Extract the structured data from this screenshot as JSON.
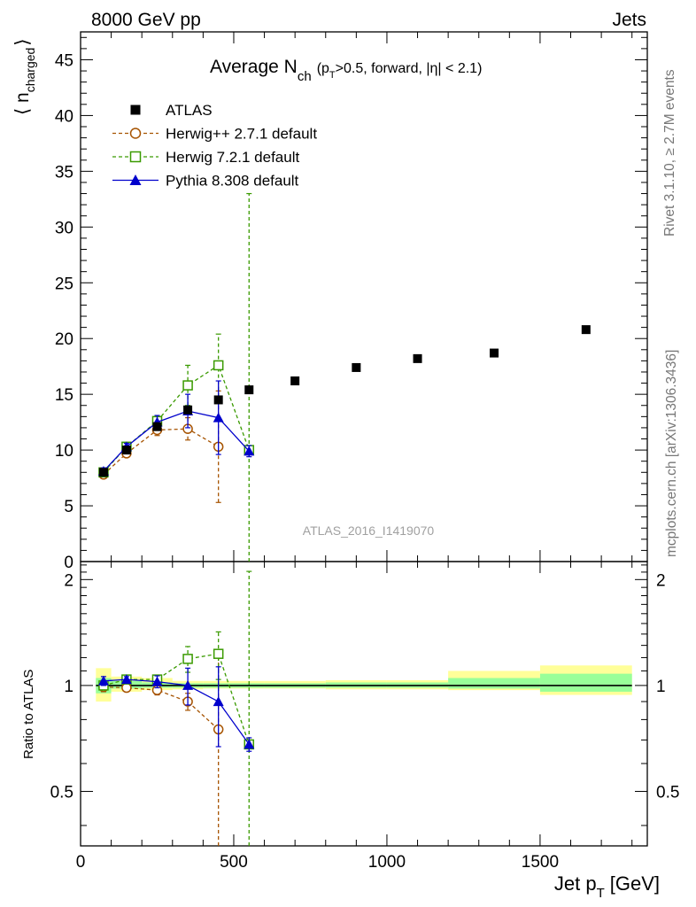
{
  "header": {
    "left": "8000 GeV pp",
    "right": "Jets"
  },
  "side_labels": {
    "rivet": "Rivet 3.1.10, ≥ 2.7M events",
    "mcplots": "mcplots.cern.ch [arXiv:1306.3436]"
  },
  "chart_data": [
    {
      "panel": "main",
      "type": "scatter",
      "title_main": "Average N",
      "title_sub": "ch",
      "title_cut": "(p",
      "title_cut_sub": "T",
      "title_cut_rest": ">0.5, forward, |η| < 2.1)",
      "ylabel_open": "⟨ n",
      "ylabel_sub": "charged",
      "ylabel_close": "⟩",
      "xlim": [
        0,
        1850
      ],
      "ylim": [
        0,
        47.5
      ],
      "yticks": [
        0,
        5,
        10,
        15,
        20,
        25,
        30,
        35,
        40,
        45
      ],
      "watermark": "ATLAS_2016_I1419070",
      "legend_position": "top-left",
      "series": [
        {
          "name": "ATLAS",
          "color": "#000000",
          "marker": "filled-square",
          "line": "none",
          "x": [
            75,
            150,
            250,
            350,
            450,
            550,
            700,
            900,
            1100,
            1350,
            1650
          ],
          "y": [
            8.0,
            10.0,
            12.1,
            13.6,
            14.5,
            15.4,
            16.2,
            17.4,
            18.2,
            18.7,
            20.8
          ]
        },
        {
          "name": "Herwig++ 2.7.1 default",
          "color": "#a65300",
          "marker": "open-circle",
          "line": "dashed",
          "x": [
            75,
            150,
            250,
            350,
            450
          ],
          "y": [
            7.8,
            9.7,
            11.8,
            11.9,
            10.3
          ],
          "err": [
            0.3,
            0.3,
            0.5,
            1.0,
            5.0
          ]
        },
        {
          "name": "Herwig 7.2.1 default",
          "color": "#3a9a00",
          "marker": "open-square",
          "line": "dashed",
          "x": [
            75,
            150,
            250,
            350,
            450,
            550
          ],
          "y": [
            8.0,
            10.3,
            12.6,
            15.8,
            17.6,
            10.0
          ],
          "err": [
            0.3,
            0.3,
            0.5,
            1.8,
            2.8,
            23.0
          ]
        },
        {
          "name": "Pythia 8.308 default",
          "color": "#0000cc",
          "marker": "filled-triangle",
          "line": "solid",
          "x": [
            75,
            150,
            250,
            350,
            450,
            550
          ],
          "y": [
            8.1,
            10.3,
            12.5,
            13.5,
            12.9,
            9.9
          ],
          "err": [
            0.3,
            0.3,
            0.6,
            1.5,
            3.3,
            0.5
          ]
        }
      ]
    },
    {
      "panel": "ratio",
      "type": "scatter",
      "ylabel": "Ratio to ATLAS",
      "xlabel": "Jet p",
      "xlabel_sub": "T",
      "xlabel_unit": "[GeV]",
      "xlim": [
        0,
        1850
      ],
      "ylim": [
        0.35,
        2.25
      ],
      "yticks": [
        0.5,
        1,
        2
      ],
      "ytick_labels": [
        "0.5",
        "1",
        "2"
      ],
      "xticks": [
        0,
        500,
        1000,
        1500
      ],
      "xtick_labels": [
        "0",
        "500",
        "1000",
        "1500"
      ],
      "data_bands": [
        {
          "x0": 50,
          "x1": 100,
          "yellow": [
            0.9,
            1.12
          ],
          "green": [
            0.95,
            1.05
          ]
        },
        {
          "x0": 100,
          "x1": 200,
          "yellow": [
            0.96,
            1.06
          ],
          "green": [
            0.98,
            1.03
          ]
        },
        {
          "x0": 200,
          "x1": 300,
          "yellow": [
            0.97,
            1.05
          ],
          "green": [
            0.985,
            1.02
          ]
        },
        {
          "x0": 300,
          "x1": 400,
          "yellow": [
            0.975,
            1.03
          ],
          "green": [
            0.985,
            1.015
          ]
        },
        {
          "x0": 400,
          "x1": 500,
          "yellow": [
            0.98,
            1.03
          ],
          "green": [
            0.985,
            1.015
          ]
        },
        {
          "x0": 500,
          "x1": 600,
          "yellow": [
            0.98,
            1.03
          ],
          "green": [
            0.985,
            1.015
          ]
        },
        {
          "x0": 600,
          "x1": 800,
          "yellow": [
            0.98,
            1.03
          ],
          "green": [
            0.985,
            1.015
          ]
        },
        {
          "x0": 800,
          "x1": 1000,
          "yellow": [
            0.975,
            1.035
          ],
          "green": [
            0.985,
            1.02
          ]
        },
        {
          "x0": 1000,
          "x1": 1200,
          "yellow": [
            0.975,
            1.035
          ],
          "green": [
            0.985,
            1.02
          ]
        },
        {
          "x0": 1200,
          "x1": 1500,
          "yellow": [
            0.97,
            1.1
          ],
          "green": [
            0.98,
            1.05
          ]
        },
        {
          "x0": 1500,
          "x1": 1800,
          "yellow": [
            0.94,
            1.14
          ],
          "green": [
            0.96,
            1.08
          ]
        }
      ],
      "series": [
        {
          "name": "Herwig++ 2.7.1 default",
          "color": "#a65300",
          "marker": "open-circle",
          "line": "dashed",
          "x": [
            75,
            150,
            250,
            350,
            450
          ],
          "y": [
            0.99,
            0.985,
            0.97,
            0.9,
            0.75
          ],
          "err": [
            0.03,
            0.02,
            0.03,
            0.05,
            0.5
          ]
        },
        {
          "name": "Herwig 7.2.1 default",
          "color": "#3a9a00",
          "marker": "open-square",
          "line": "dashed",
          "x": [
            75,
            150,
            250,
            350,
            450,
            550
          ],
          "y": [
            1.0,
            1.04,
            1.04,
            1.19,
            1.23,
            0.68
          ],
          "err": [
            0.03,
            0.02,
            0.03,
            0.1,
            0.19,
            1.43
          ]
        },
        {
          "name": "Pythia 8.308 default",
          "color": "#0000cc",
          "marker": "filled-triangle",
          "line": "solid",
          "x": [
            75,
            150,
            250,
            350,
            450,
            550
          ],
          "y": [
            1.03,
            1.04,
            1.025,
            1.0,
            0.9,
            0.68
          ],
          "err": [
            0.03,
            0.02,
            0.04,
            0.12,
            0.23,
            0.03
          ]
        }
      ]
    }
  ]
}
